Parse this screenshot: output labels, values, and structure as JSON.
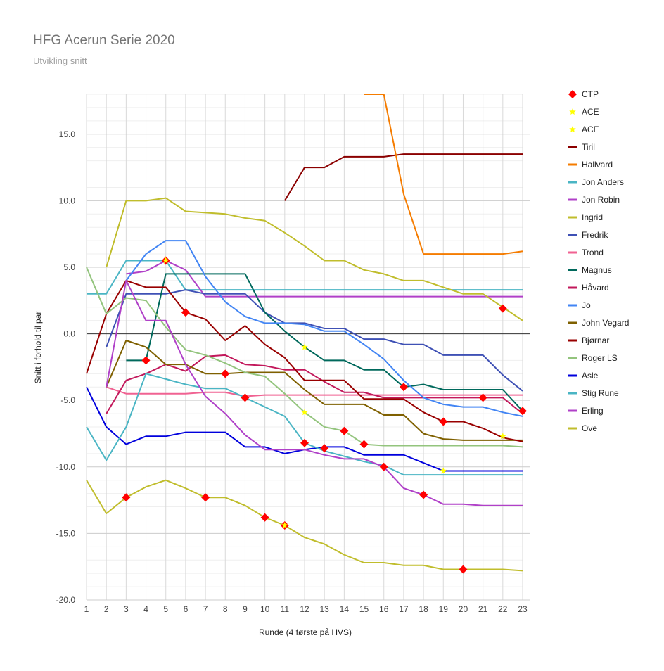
{
  "chart_data": {
    "type": "line",
    "title": "HFG Acerun Serie 2020",
    "subtitle": "Utvikling snitt",
    "xlabel": "Runde (4 første på HVS)",
    "ylabel": "Snitt i forhold til par",
    "x": [
      1,
      2,
      3,
      4,
      5,
      6,
      7,
      8,
      9,
      10,
      11,
      12,
      13,
      14,
      15,
      16,
      17,
      18,
      19,
      20,
      21,
      22,
      23
    ],
    "ylim": [
      -20,
      18
    ],
    "yticks": [
      -20,
      -15,
      -10,
      -5,
      0,
      5,
      10,
      15
    ],
    "yticklabels": [
      "-20.0",
      "-15.0",
      "-10.0",
      "-5.0",
      "0.0",
      "5.0",
      "10.0",
      "15.0"
    ],
    "grid": true,
    "legend_position": "right",
    "series": [
      {
        "name": "Tiril",
        "color": "#8b0000",
        "values": [
          null,
          null,
          null,
          null,
          null,
          null,
          null,
          null,
          null,
          null,
          10.0,
          12.5,
          12.5,
          13.3,
          13.3,
          13.3,
          13.5,
          13.5,
          13.5,
          13.5,
          13.5,
          13.5,
          13.5
        ]
      },
      {
        "name": "Hallvard",
        "color": "#f57c00",
        "values": [
          null,
          null,
          null,
          null,
          null,
          null,
          null,
          null,
          null,
          null,
          null,
          null,
          null,
          null,
          18.0,
          18.0,
          10.5,
          6.0,
          6.0,
          6.0,
          6.0,
          6.0,
          6.2
        ]
      },
      {
        "name": "Jon Anders",
        "color": "#4ab5c4",
        "values": [
          3.0,
          3.0,
          5.5,
          5.5,
          5.5,
          3.3,
          3.3,
          3.3,
          3.3,
          3.3,
          3.3,
          3.3,
          3.3,
          3.3,
          3.3,
          3.3,
          3.3,
          3.3,
          3.3,
          3.3,
          3.3,
          3.3,
          3.3
        ]
      },
      {
        "name": "Jon Robin",
        "color": "#b040c8",
        "values": [
          null,
          null,
          4.5,
          4.7,
          5.5,
          4.8,
          2.8,
          2.8,
          2.8,
          2.8,
          2.8,
          2.8,
          2.8,
          2.8,
          2.8,
          2.8,
          2.8,
          2.8,
          2.8,
          2.8,
          2.8,
          2.8,
          2.8
        ]
      },
      {
        "name": "Ingrid",
        "color": "#c0bd2c",
        "values": [
          null,
          5.0,
          10.0,
          10.0,
          10.2,
          9.2,
          9.1,
          9.0,
          8.7,
          8.5,
          7.6,
          6.6,
          5.5,
          5.5,
          4.8,
          4.5,
          4.0,
          4.0,
          3.5,
          3.0,
          3.0,
          2.0,
          1.0
        ]
      },
      {
        "name": "Fredrik",
        "color": "#3f51b5",
        "values": [
          null,
          -1.0,
          3.0,
          3.0,
          3.0,
          3.3,
          3.0,
          3.0,
          3.0,
          1.6,
          0.8,
          0.8,
          0.4,
          0.4,
          -0.4,
          -0.4,
          -0.8,
          -0.8,
          -1.6,
          -1.6,
          -1.6,
          -3.1,
          -4.3
        ]
      },
      {
        "name": "Trond",
        "color": "#f06292",
        "values": [
          null,
          -4.0,
          -4.5,
          -4.5,
          -4.5,
          -4.5,
          -4.4,
          -4.4,
          -4.7,
          -4.6,
          -4.6,
          -4.6,
          -4.6,
          -4.6,
          -4.6,
          -4.6,
          -4.6,
          -4.6,
          -4.6,
          -4.6,
          -4.6,
          -4.6,
          -4.6
        ]
      },
      {
        "name": "Magnus",
        "color": "#00695c",
        "values": [
          null,
          null,
          -2.0,
          -2.0,
          4.5,
          4.5,
          4.5,
          4.5,
          4.5,
          1.6,
          0.2,
          -1.0,
          -2.0,
          -2.0,
          -2.7,
          -2.7,
          -4.0,
          -3.8,
          -4.2,
          -4.2,
          -4.2,
          -4.2,
          -5.8
        ]
      },
      {
        "name": "Håvard",
        "color": "#c2185b",
        "values": [
          null,
          -6.0,
          -3.5,
          -3.0,
          -2.3,
          -2.8,
          -1.7,
          -1.6,
          -2.3,
          -2.4,
          -2.7,
          -2.7,
          -3.6,
          -4.4,
          -4.4,
          -4.8,
          -4.8,
          -4.8,
          -4.8,
          -4.8,
          -4.8,
          -4.8,
          -6.0
        ]
      },
      {
        "name": "Jo",
        "color": "#4285f4",
        "values": [
          null,
          null,
          4.0,
          6.0,
          7.0,
          7.0,
          4.3,
          2.4,
          1.3,
          0.8,
          0.8,
          0.7,
          0.2,
          0.2,
          -0.8,
          -1.9,
          -3.5,
          -4.8,
          -5.3,
          -5.5,
          -5.5,
          -5.9,
          -6.2
        ]
      },
      {
        "name": "John Vegard",
        "color": "#7f6000",
        "values": [
          null,
          -4.0,
          -0.5,
          -1.0,
          -2.3,
          -2.3,
          -3.0,
          -3.0,
          -2.9,
          -2.9,
          -2.9,
          -4.2,
          -5.3,
          -5.3,
          -5.3,
          -6.1,
          -6.1,
          -7.5,
          -7.9,
          -8.0,
          -8.0,
          -8.0,
          -8.0
        ]
      },
      {
        "name": "Bjørnar",
        "color": "#990000",
        "values": [
          -3.0,
          1.5,
          4.0,
          3.5,
          3.5,
          1.6,
          1.1,
          -0.5,
          0.6,
          -0.8,
          -1.8,
          -3.5,
          -3.5,
          -3.5,
          -4.9,
          -4.9,
          -4.9,
          -5.9,
          -6.6,
          -6.6,
          -7.1,
          -7.8,
          -8.1
        ]
      },
      {
        "name": "Roger LS",
        "color": "#93c47d",
        "values": [
          5.0,
          1.5,
          2.7,
          2.5,
          0.5,
          -1.2,
          -1.6,
          -2.2,
          -2.9,
          -3.2,
          -4.5,
          -5.9,
          -7.0,
          -7.3,
          -8.3,
          -8.4,
          -8.4,
          -8.4,
          -8.4,
          -8.4,
          -8.4,
          -8.4,
          -8.5
        ]
      },
      {
        "name": "Asle",
        "color": "#0000dd",
        "values": [
          -4.0,
          -7.0,
          -8.3,
          -7.7,
          -7.7,
          -7.4,
          -7.4,
          -7.4,
          -8.5,
          -8.5,
          -9.0,
          -8.7,
          -8.5,
          -8.5,
          -9.1,
          -9.1,
          -9.1,
          -9.7,
          -10.3,
          -10.3,
          -10.3,
          -10.3,
          -10.3
        ]
      },
      {
        "name": "Stig Rune",
        "color": "#4ab5c4",
        "values": [
          -7.0,
          -9.5,
          -7.0,
          -3.0,
          -3.4,
          -3.8,
          -4.1,
          -4.1,
          -4.8,
          -5.5,
          -6.2,
          -8.2,
          -8.8,
          -9.2,
          -9.6,
          -9.9,
          -10.6,
          -10.6,
          -10.6,
          -10.6,
          -10.6,
          -10.6,
          -10.6
        ]
      },
      {
        "name": "Erling",
        "color": "#b040c8",
        "values": [
          null,
          -4.0,
          4.0,
          1.0,
          1.0,
          -2.3,
          -4.7,
          -6.0,
          -7.6,
          -8.7,
          -8.7,
          -8.7,
          -9.1,
          -9.4,
          -9.4,
          -10.0,
          -11.6,
          -12.1,
          -12.8,
          -12.8,
          -12.9,
          -12.9,
          -12.9
        ]
      },
      {
        "name": "Ove",
        "color": "#c0bd2c",
        "values": [
          -11.0,
          -13.5,
          -12.3,
          -11.5,
          -11.0,
          -11.6,
          -12.3,
          -12.3,
          -12.9,
          -13.8,
          -14.4,
          -15.3,
          -15.8,
          -16.6,
          -17.2,
          -17.2,
          -17.4,
          -17.4,
          -17.7,
          -17.7,
          -17.7,
          -17.7,
          -17.8
        ]
      }
    ],
    "markers": {
      "ctp": {
        "name": "CTP",
        "color": "#ff0000",
        "points": [
          [
            3,
            -12.3
          ],
          [
            4,
            -2.0
          ],
          [
            5,
            5.5
          ],
          [
            6,
            1.6
          ],
          [
            7,
            -12.3
          ],
          [
            8,
            -3.0
          ],
          [
            9,
            -4.8
          ],
          [
            10,
            -13.8
          ],
          [
            11,
            -14.4
          ],
          [
            12,
            -8.2
          ],
          [
            13,
            -8.6
          ],
          [
            14,
            -7.3
          ],
          [
            15,
            -8.3
          ],
          [
            16,
            -10.0
          ],
          [
            17,
            -4.0
          ],
          [
            18,
            -12.1
          ],
          [
            19,
            -6.6
          ],
          [
            20,
            -17.7
          ],
          [
            21,
            -4.8
          ],
          [
            22,
            1.9
          ],
          [
            23,
            -5.8
          ]
        ]
      },
      "ace1": {
        "name": "ACE",
        "color": "#ffff00",
        "points": [
          [
            5,
            5.5
          ],
          [
            11,
            -14.4
          ],
          [
            12,
            -1.0
          ],
          [
            12,
            -5.9
          ],
          [
            19,
            -10.3
          ],
          [
            22,
            -7.7
          ]
        ]
      },
      "ace2": {
        "name": "ACE",
        "color": "#ffff00",
        "points": []
      }
    }
  }
}
